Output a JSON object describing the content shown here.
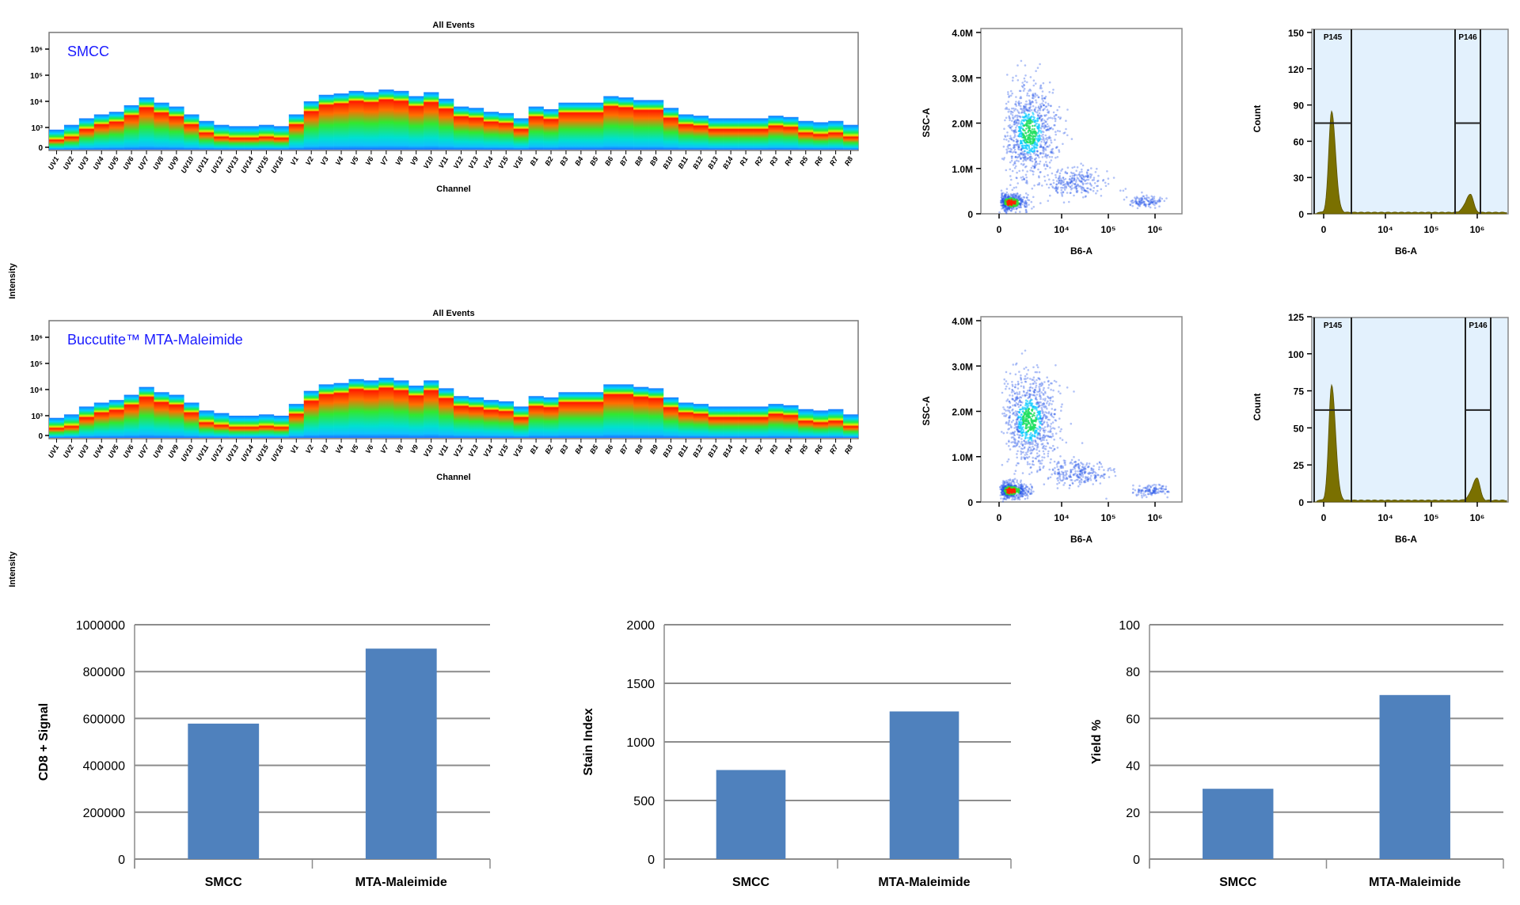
{
  "chart_data": [
    {
      "type": "heatmap",
      "title": "All Events",
      "annotation": "SMCC",
      "annotation_color": "#1a1aff",
      "xlabel": "Channel",
      "ylabel": "Intensity",
      "y_scale": "biexponential",
      "y_tick_labels": [
        "0",
        "10³",
        "10⁴",
        "10⁵",
        "10⁶"
      ],
      "categories": [
        "UV1",
        "UV2",
        "UV3",
        "UV4",
        "UV5",
        "UV6",
        "UV7",
        "UV8",
        "UV9",
        "UV10",
        "UV11",
        "UV12",
        "UV13",
        "UV14",
        "UV15",
        "UV16",
        "V1",
        "V2",
        "V3",
        "V4",
        "V5",
        "V6",
        "V7",
        "V8",
        "V9",
        "V10",
        "V11",
        "V12",
        "V13",
        "V14",
        "V15",
        "V16",
        "B1",
        "B2",
        "B3",
        "B4",
        "B5",
        "B6",
        "B7",
        "B8",
        "B9",
        "B10",
        "B11",
        "B12",
        "B13",
        "B14",
        "R1",
        "R2",
        "R3",
        "R4",
        "R5",
        "R6",
        "R7",
        "R8"
      ],
      "max_intensity": [
        890,
        1260,
        2240,
        3160,
        3980,
        7080,
        14100,
        8910,
        6310,
        3160,
        1780,
        1260,
        1120,
        1120,
        1260,
        1120,
        3160,
        10000,
        17800,
        20000,
        25100,
        22400,
        28200,
        25100,
        15800,
        22400,
        12600,
        6310,
        5620,
        3980,
        3550,
        2240,
        6310,
        5010,
        8910,
        8910,
        8910,
        15800,
        14100,
        11200,
        11200,
        5620,
        3160,
        2820,
        2240,
        2240,
        2240,
        2240,
        2820,
        2510,
        1780,
        1580,
        1780,
        1260
      ]
    },
    {
      "type": "heatmap",
      "title": "All Events",
      "annotation": "Buccutite™ MTA-Maleimide",
      "annotation_color": "#1a1aff",
      "xlabel": "Channel",
      "ylabel": "Intensity",
      "y_scale": "biexponential",
      "y_tick_labels": [
        "0",
        "10³",
        "10⁴",
        "10⁵",
        "10⁶"
      ],
      "categories": [
        "UV1",
        "UV2",
        "UV3",
        "UV4",
        "UV5",
        "UV6",
        "UV7",
        "UV8",
        "UV9",
        "UV10",
        "UV11",
        "UV12",
        "UV13",
        "UV14",
        "UV15",
        "UV16",
        "V1",
        "V2",
        "V3",
        "V4",
        "V5",
        "V6",
        "V7",
        "V8",
        "V9",
        "V10",
        "V11",
        "V12",
        "V13",
        "V14",
        "V15",
        "V16",
        "B1",
        "B2",
        "B3",
        "B4",
        "B5",
        "B6",
        "B7",
        "B8",
        "B9",
        "B10",
        "B11",
        "B12",
        "B13",
        "B14",
        "R1",
        "R2",
        "R3",
        "R4",
        "R5",
        "R6",
        "R7",
        "R8"
      ],
      "max_intensity": [
        890,
        1120,
        2240,
        3160,
        3980,
        6310,
        12600,
        7940,
        6310,
        3160,
        1580,
        1260,
        1000,
        1000,
        1120,
        1000,
        2820,
        8910,
        15800,
        17800,
        25100,
        22400,
        28200,
        22400,
        14100,
        22400,
        11200,
        5620,
        5010,
        3980,
        3550,
        2240,
        5620,
        5010,
        7940,
        7940,
        7940,
        15800,
        15800,
        12600,
        11200,
        5010,
        3160,
        2820,
        2240,
        2240,
        2240,
        2240,
        2820,
        2510,
        1780,
        1580,
        1780,
        1120
      ]
    },
    {
      "type": "scatter",
      "xlabel": "B6-A",
      "ylabel": "SSC-A",
      "x_scale": "biexponential",
      "x_tick_labels": [
        "0",
        "10⁴",
        "10⁵",
        "10⁶"
      ],
      "y_tick_labels": [
        "0",
        "1.0M",
        "2.0M",
        "3.0M",
        "4.0M"
      ],
      "ylim": [
        0,
        4000000
      ],
      "populations": [
        {
          "x": 150,
          "y": 250000,
          "n": 500
        },
        {
          "x": 800,
          "y": 1800000,
          "n": 900
        },
        {
          "x": 22000,
          "y": 700000,
          "n": 250
        },
        {
          "x": 630000,
          "y": 270000,
          "n": 120
        }
      ]
    },
    {
      "type": "area",
      "xlabel": "B6-A",
      "ylabel": "Count",
      "x_scale": "biexponential",
      "x_tick_labels": [
        "0",
        "10⁴",
        "10⁵",
        "10⁶"
      ],
      "y_tick_labels": [
        "0",
        "30",
        "60",
        "90",
        "120",
        "150"
      ],
      "ylim": [
        0,
        150
      ],
      "peaks": [
        {
          "x": 100,
          "count": 84
        },
        {
          "x": 720000,
          "count": 15
        }
      ],
      "gates": [
        {
          "label": "P145",
          "level": 75
        },
        {
          "label": "P146",
          "level": 75
        }
      ],
      "fill": "#7a7000"
    },
    {
      "type": "scatter",
      "xlabel": "B6-A",
      "ylabel": "SSC-A",
      "x_scale": "biexponential",
      "x_tick_labels": [
        "0",
        "10⁴",
        "10⁵",
        "10⁶"
      ],
      "y_tick_labels": [
        "0",
        "1.0M",
        "2.0M",
        "3.0M",
        "4.0M"
      ],
      "ylim": [
        0,
        4000000
      ],
      "populations": [
        {
          "x": 150,
          "y": 250000,
          "n": 500
        },
        {
          "x": 800,
          "y": 1800000,
          "n": 900
        },
        {
          "x": 22000,
          "y": 650000,
          "n": 250
        },
        {
          "x": 800000,
          "y": 250000,
          "n": 120
        }
      ]
    },
    {
      "type": "area",
      "xlabel": "B6-A",
      "ylabel": "Count",
      "x_scale": "biexponential",
      "x_tick_labels": [
        "0",
        "10⁴",
        "10⁵",
        "10⁶"
      ],
      "y_tick_labels": [
        "0",
        "25",
        "50",
        "75",
        "100",
        "125"
      ],
      "ylim": [
        0,
        125
      ],
      "peaks": [
        {
          "x": 100,
          "count": 78
        },
        {
          "x": 1000000,
          "count": 15
        }
      ],
      "gates": [
        {
          "label": "P145",
          "level": 62
        },
        {
          "label": "P146",
          "level": 62
        }
      ],
      "fill": "#7a7000"
    },
    {
      "type": "bar",
      "categories": [
        "SMCC",
        "MTA-Maleimide"
      ],
      "values": [
        578000,
        898000
      ],
      "ylabel": "CD8 + Signal",
      "ylim": [
        0,
        1000000
      ],
      "y_tick_labels": [
        "0",
        "200000",
        "400000",
        "600000",
        "800000",
        "1000000"
      ],
      "grid": true,
      "color": "#4f81bd"
    },
    {
      "type": "bar",
      "categories": [
        "SMCC",
        "MTA-Maleimide"
      ],
      "values": [
        760,
        1260
      ],
      "ylabel": "Stain Index",
      "ylim": [
        0,
        2000
      ],
      "y_tick_labels": [
        "0",
        "500",
        "1000",
        "1500",
        "2000"
      ],
      "grid": true,
      "color": "#4f81bd"
    },
    {
      "type": "bar",
      "categories": [
        "SMCC",
        "MTA-Maleimide"
      ],
      "values": [
        30,
        70
      ],
      "ylabel": "Yield %",
      "ylim": [
        0,
        100
      ],
      "y_tick_labels": [
        "0",
        "20",
        "40",
        "60",
        "80",
        "100"
      ],
      "grid": true,
      "color": "#4f81bd"
    }
  ]
}
